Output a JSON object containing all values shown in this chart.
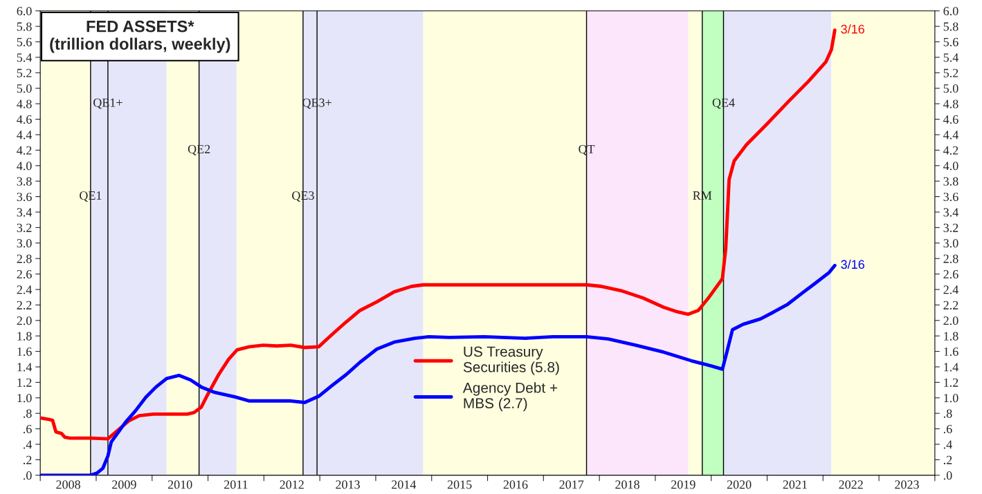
{
  "chart_data": {
    "type": "line",
    "title": "FED ASSETS*\n(trillion dollars, weekly)",
    "xlim": [
      2008.0,
      2024.0
    ],
    "xticks": [
      {
        "value": 2008,
        "label": null
      },
      {
        "value": 2008.5,
        "label": "2008"
      },
      {
        "value": 2009,
        "label": null
      },
      {
        "value": 2009.5,
        "label": "2009"
      },
      {
        "value": 2010,
        "label": null
      },
      {
        "value": 2010.5,
        "label": "2010"
      },
      {
        "value": 2011,
        "label": null
      },
      {
        "value": 2011.5,
        "label": "2011"
      },
      {
        "value": 2012,
        "label": null
      },
      {
        "value": 2012.5,
        "label": "2012"
      },
      {
        "value": 2013,
        "label": null
      },
      {
        "value": 2013.5,
        "label": "2013"
      },
      {
        "value": 2014,
        "label": null
      },
      {
        "value": 2014.5,
        "label": "2014"
      },
      {
        "value": 2015,
        "label": null
      },
      {
        "value": 2015.5,
        "label": "2015"
      },
      {
        "value": 2016,
        "label": null
      },
      {
        "value": 2016.5,
        "label": "2016"
      },
      {
        "value": 2017,
        "label": null
      },
      {
        "value": 2017.5,
        "label": "2017"
      },
      {
        "value": 2018,
        "label": null
      },
      {
        "value": 2018.5,
        "label": "2018"
      },
      {
        "value": 2019,
        "label": null
      },
      {
        "value": 2019.5,
        "label": "2019"
      },
      {
        "value": 2020,
        "label": null
      },
      {
        "value": 2020.5,
        "label": "2020"
      },
      {
        "value": 2021,
        "label": null
      },
      {
        "value": 2021.5,
        "label": "2021"
      },
      {
        "value": 2022,
        "label": null
      },
      {
        "value": 2022.5,
        "label": "2022"
      },
      {
        "value": 2023,
        "label": null
      },
      {
        "value": 2023.5,
        "label": "2023"
      },
      {
        "value": 2024,
        "label": null
      }
    ],
    "ylim": [
      0,
      6.0
    ],
    "yticks": [
      {
        "value": 0,
        "label": ".0"
      },
      {
        "value": 0.2,
        "label": ".2"
      },
      {
        "value": 0.4,
        "label": ".4"
      },
      {
        "value": 0.6,
        "label": ".6"
      },
      {
        "value": 0.8,
        "label": ".8"
      },
      {
        "value": 1.0,
        "label": "1.0"
      },
      {
        "value": 1.2,
        "label": "1.2"
      },
      {
        "value": 1.4,
        "label": "1.4"
      },
      {
        "value": 1.6,
        "label": "1.6"
      },
      {
        "value": 1.8,
        "label": "1.8"
      },
      {
        "value": 2.0,
        "label": "2.0"
      },
      {
        "value": 2.2,
        "label": "2.2"
      },
      {
        "value": 2.4,
        "label": "2.4"
      },
      {
        "value": 2.6,
        "label": "2.6"
      },
      {
        "value": 2.8,
        "label": "2.8"
      },
      {
        "value": 3.0,
        "label": "3.0"
      },
      {
        "value": 3.2,
        "label": "3.2"
      },
      {
        "value": 3.4,
        "label": "3.4"
      },
      {
        "value": 3.6,
        "label": "3.6"
      },
      {
        "value": 3.8,
        "label": "3.8"
      },
      {
        "value": 4.0,
        "label": "4.0"
      },
      {
        "value": 4.2,
        "label": "4.2"
      },
      {
        "value": 4.4,
        "label": "4.4"
      },
      {
        "value": 4.6,
        "label": "4.6"
      },
      {
        "value": 4.8,
        "label": "4.8"
      },
      {
        "value": 5.0,
        "label": "5.0"
      },
      {
        "value": 5.2,
        "label": "5.2"
      },
      {
        "value": 5.4,
        "label": "5.4"
      },
      {
        "value": 5.6,
        "label": "5.6"
      },
      {
        "value": 5.8,
        "label": "5.8"
      },
      {
        "value": 6.0,
        "label": "6.0"
      }
    ],
    "y2lim": [
      0,
      6.0
    ],
    "y2ticks": [
      {
        "value": 0,
        "label": ".0"
      },
      {
        "value": 0.2,
        "label": ".2"
      },
      {
        "value": 0.4,
        "label": ".4"
      },
      {
        "value": 0.6,
        "label": ".6"
      },
      {
        "value": 0.8,
        "label": ".8"
      },
      {
        "value": 1.0,
        "label": "1.0"
      },
      {
        "value": 1.2,
        "label": "1.2"
      },
      {
        "value": 1.4,
        "label": "1.4"
      },
      {
        "value": 1.6,
        "label": "1.6"
      },
      {
        "value": 1.8,
        "label": "1.8"
      },
      {
        "value": 2.0,
        "label": "2.0"
      },
      {
        "value": 2.2,
        "label": "2.2"
      },
      {
        "value": 2.4,
        "label": "2.4"
      },
      {
        "value": 2.6,
        "label": "2.6"
      },
      {
        "value": 2.8,
        "label": "2.8"
      },
      {
        "value": 3.0,
        "label": "3.0"
      },
      {
        "value": 3.2,
        "label": "3.2"
      },
      {
        "value": 3.4,
        "label": "3.4"
      },
      {
        "value": 3.6,
        "label": "3.6"
      },
      {
        "value": 3.8,
        "label": "3.8"
      },
      {
        "value": 4.0,
        "label": "4.0"
      },
      {
        "value": 4.2,
        "label": "4.2"
      },
      {
        "value": 4.4,
        "label": "4.4"
      },
      {
        "value": 4.6,
        "label": "4.6"
      },
      {
        "value": 4.8,
        "label": "4.8"
      },
      {
        "value": 5.0,
        "label": "5.0"
      },
      {
        "value": 5.2,
        "label": "5.2"
      },
      {
        "value": 5.4,
        "label": "5.4"
      },
      {
        "value": 5.6,
        "label": "5.6"
      },
      {
        "value": 5.8,
        "label": "5.8"
      },
      {
        "value": 6.0,
        "label": "6.0"
      }
    ],
    "grid": false,
    "legend": "bottom",
    "marker": "none",
    "line_style": "solid",
    "series": [
      {
        "name": "US Treasury\nSecurities (5.8)",
        "color": "#ff0000",
        "x": [
          2008.0,
          2008.16,
          2008.22,
          2008.28,
          2008.38,
          2008.44,
          2008.53,
          2008.9,
          2009.21,
          2009.4,
          2009.58,
          2009.77,
          2010.02,
          2010.39,
          2010.63,
          2010.75,
          2010.88,
          2011.0,
          2011.19,
          2011.37,
          2011.52,
          2011.74,
          2011.99,
          2012.23,
          2012.48,
          2012.73,
          2012.98,
          2013.22,
          2013.47,
          2013.72,
          2014.02,
          2014.33,
          2014.64,
          2014.85,
          2015.94,
          2017.77,
          2018.04,
          2018.41,
          2018.78,
          2019.15,
          2019.4,
          2019.59,
          2019.77,
          2019.95,
          2020.2,
          2020.26,
          2020.32,
          2020.41,
          2020.63,
          2021.0,
          2021.37,
          2021.74,
          2022.05,
          2022.15,
          2022.21
        ],
        "values": [
          0.74,
          0.72,
          0.71,
          0.56,
          0.54,
          0.49,
          0.48,
          0.48,
          0.47,
          0.59,
          0.7,
          0.77,
          0.79,
          0.79,
          0.79,
          0.81,
          0.88,
          1.05,
          1.3,
          1.5,
          1.62,
          1.66,
          1.68,
          1.67,
          1.68,
          1.65,
          1.66,
          1.82,
          1.98,
          2.13,
          2.24,
          2.37,
          2.44,
          2.46,
          2.46,
          2.46,
          2.44,
          2.38,
          2.29,
          2.17,
          2.11,
          2.08,
          2.13,
          2.29,
          2.54,
          2.93,
          3.82,
          4.06,
          4.27,
          4.54,
          4.82,
          5.09,
          5.34,
          5.5,
          5.75
        ]
      },
      {
        "name": "Agency Debt +\nMBS (2.7)",
        "color": "#0000ff",
        "x": [
          2008.0,
          2008.9,
          2009.02,
          2009.12,
          2009.21,
          2009.27,
          2009.4,
          2009.52,
          2009.7,
          2009.89,
          2010.07,
          2010.26,
          2010.48,
          2010.69,
          2010.88,
          2011.12,
          2011.49,
          2011.74,
          2011.99,
          2012.23,
          2012.48,
          2012.73,
          2012.98,
          2013.22,
          2013.47,
          2013.72,
          2014.02,
          2014.33,
          2014.7,
          2014.95,
          2015.32,
          2015.94,
          2016.68,
          2017.17,
          2017.77,
          2018.16,
          2018.65,
          2019.15,
          2019.64,
          2020.01,
          2020.2,
          2020.28,
          2020.38,
          2020.57,
          2020.88,
          2021.12,
          2021.37,
          2021.62,
          2021.86,
          2022.11,
          2022.21
        ],
        "values": [
          0,
          0,
          0.03,
          0.09,
          0.25,
          0.43,
          0.56,
          0.68,
          0.83,
          1.01,
          1.14,
          1.25,
          1.29,
          1.23,
          1.14,
          1.07,
          1.01,
          0.96,
          0.96,
          0.96,
          0.96,
          0.94,
          1.02,
          1.16,
          1.3,
          1.46,
          1.63,
          1.72,
          1.77,
          1.79,
          1.78,
          1.79,
          1.77,
          1.79,
          1.79,
          1.76,
          1.68,
          1.59,
          1.48,
          1.41,
          1.37,
          1.59,
          1.88,
          1.95,
          2.02,
          2.11,
          2.21,
          2.35,
          2.48,
          2.62,
          2.71
        ]
      }
    ],
    "annotations": [
      {
        "text": "3/16",
        "x": 2022.21,
        "y": 5.75
      },
      {
        "text": "3/16",
        "x": 2022.21,
        "y": 2.71
      }
    ],
    "ref_lines": [
      {
        "axis": "x",
        "value": 2008.9,
        "label": "QE1",
        "color": "#000000"
      },
      {
        "axis": "x",
        "value": 2009.21,
        "label": "QE1+",
        "color": "#000000"
      },
      {
        "axis": "x",
        "value": 2010.84,
        "label": "QE2",
        "color": "#000000"
      },
      {
        "axis": "x",
        "value": 2012.7,
        "label": "QE3",
        "color": "#000000"
      },
      {
        "axis": "x",
        "value": 2012.95,
        "label": "QE3+",
        "color": "#000000"
      },
      {
        "axis": "x",
        "value": 2017.77,
        "label": "QT",
        "color": "#000000"
      },
      {
        "axis": "x",
        "value": 2019.84,
        "label": "RM",
        "color": "#000000"
      },
      {
        "axis": "x",
        "value": 2020.22,
        "label": "QE4",
        "color": "#000000"
      }
    ],
    "bands": [
      {
        "axis": "x",
        "from": 2008.0,
        "to": 2008.9,
        "color": "#ffffe0"
      },
      {
        "axis": "x",
        "from": 2008.9,
        "to": 2010.26,
        "color": "#e6e6fa"
      },
      {
        "axis": "x",
        "from": 2010.26,
        "to": 2010.84,
        "color": "#ffffe0"
      },
      {
        "axis": "x",
        "from": 2010.84,
        "to": 2011.51,
        "color": "#e6e6fa"
      },
      {
        "axis": "x",
        "from": 2011.51,
        "to": 2012.7,
        "color": "#ffffe0"
      },
      {
        "axis": "x",
        "from": 2012.7,
        "to": 2014.85,
        "color": "#e6e6fa"
      },
      {
        "axis": "x",
        "from": 2014.85,
        "to": 2017.77,
        "color": "#ffffe0"
      },
      {
        "axis": "x",
        "from": 2017.77,
        "to": 2019.59,
        "color": "#fce6fc"
      },
      {
        "axis": "x",
        "from": 2019.59,
        "to": 2019.84,
        "color": "#ffffe0"
      },
      {
        "axis": "x",
        "from": 2019.84,
        "to": 2020.22,
        "color": "#c0ffc0"
      },
      {
        "axis": "x",
        "from": 2020.22,
        "to": 2022.15,
        "color": "#e6e6fa"
      },
      {
        "axis": "x",
        "from": 2022.15,
        "to": 2024.0,
        "color": "#ffffe0"
      }
    ]
  }
}
